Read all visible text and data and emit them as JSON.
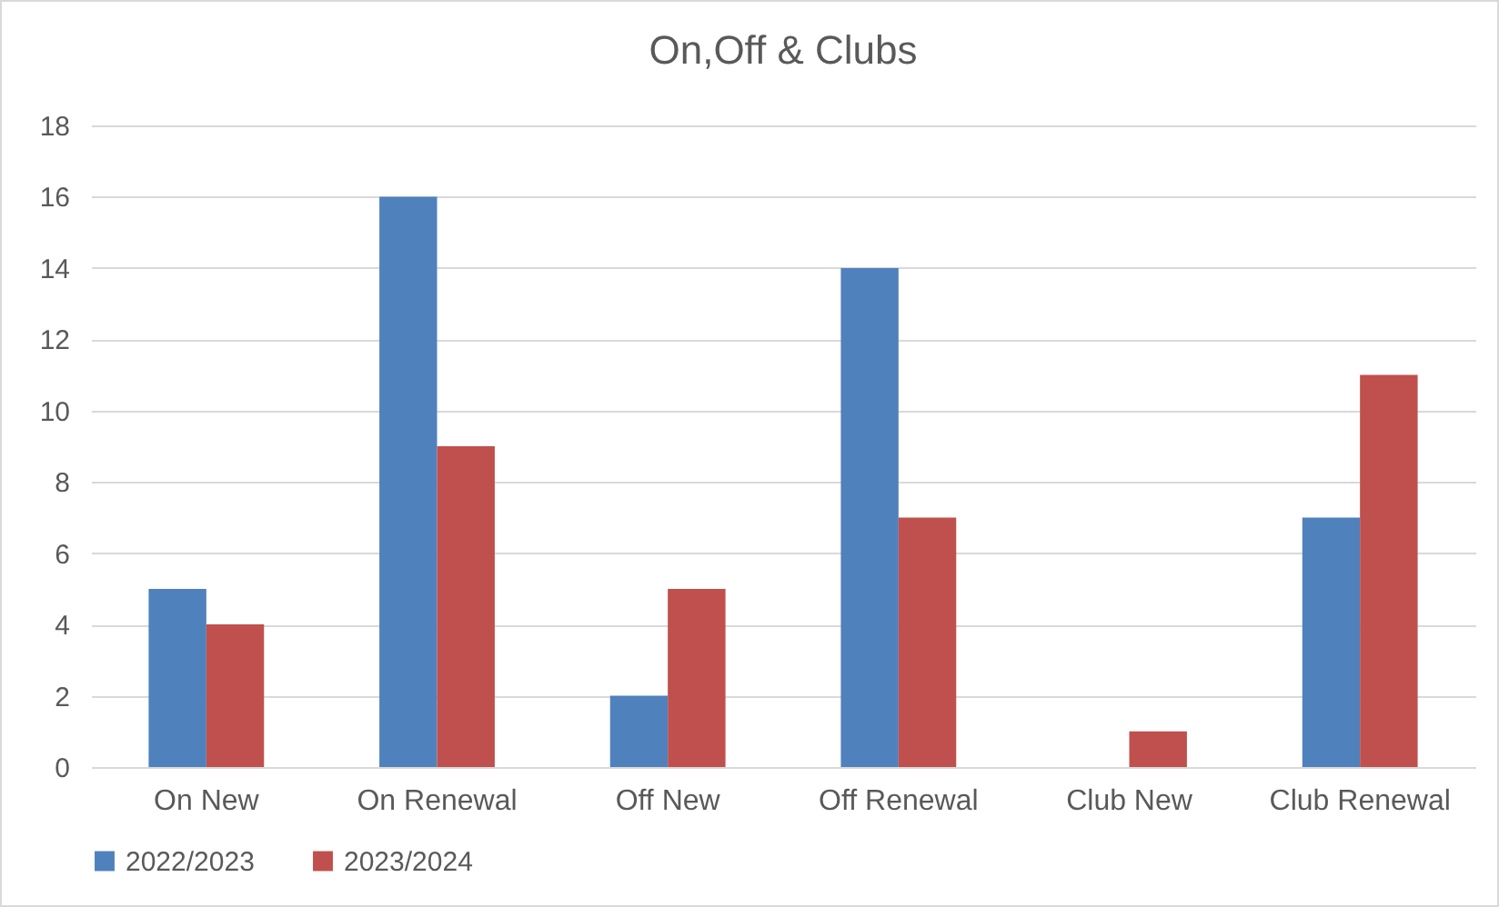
{
  "chart_data": {
    "type": "bar",
    "title": "On,Off & Clubs",
    "categories": [
      "On New",
      "On Renewal",
      "Off New",
      "Off Renewal",
      "Club New",
      "Club Renewal"
    ],
    "series": [
      {
        "name": "2022/2023",
        "color": "#4f81bd",
        "values": [
          5,
          16,
          2,
          14,
          0,
          7
        ]
      },
      {
        "name": "2023/2024",
        "color": "#c0504d",
        "values": [
          4,
          9,
          5,
          7,
          1,
          11
        ]
      }
    ],
    "ylim": [
      0,
      18
    ],
    "yticks": [
      0,
      2,
      4,
      6,
      8,
      10,
      12,
      14,
      16,
      18
    ],
    "grid": "y",
    "legend": "bottom"
  }
}
